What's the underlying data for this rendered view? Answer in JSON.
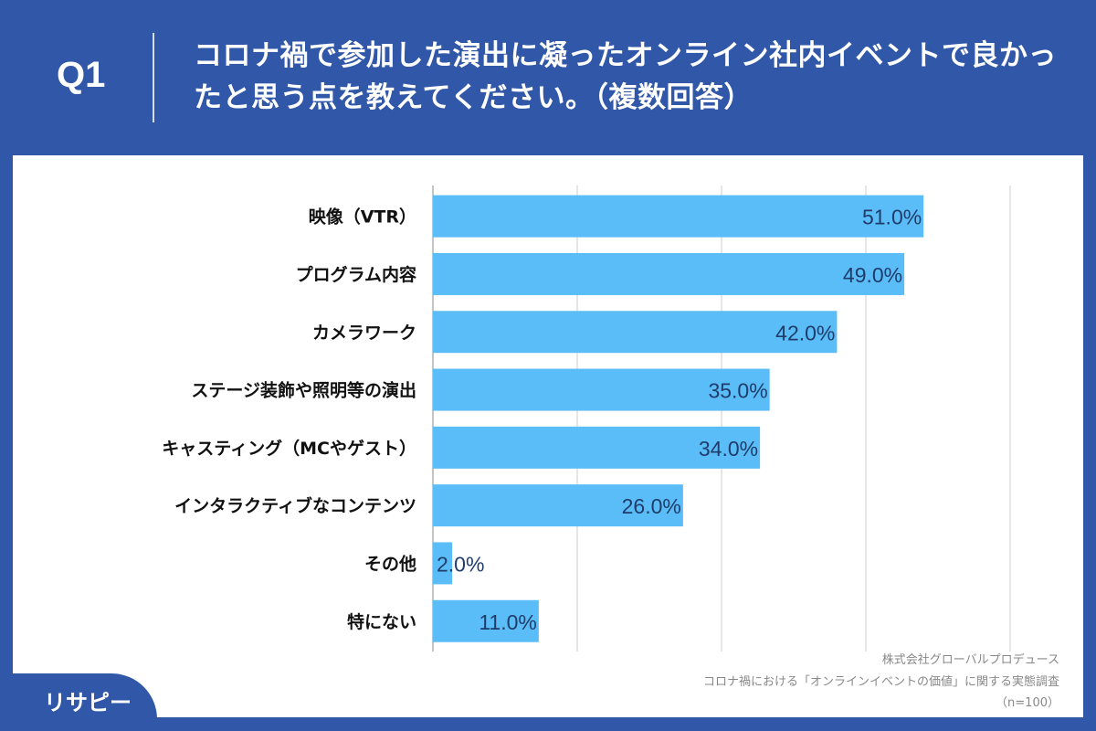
{
  "header": {
    "question": "Q1",
    "title": "コロナ禍で参加した演出に凝ったオンライン社内イベントで良かったと思う点を教えてください。（複数回答）"
  },
  "colors": {
    "background": "#3157a8",
    "bar": "#5bbdf7",
    "value_label": "#1f3c6b"
  },
  "chart_data": {
    "type": "bar",
    "orientation": "horizontal",
    "categories": [
      "映像（VTR）",
      "プログラム内容",
      "カメラワーク",
      "ステージ装飾や照明等の演出",
      "キャスティング（MCやゲスト）",
      "インタラクティブなコンテンツ",
      "その他",
      "特にない"
    ],
    "values": [
      51.0,
      49.0,
      42.0,
      35.0,
      34.0,
      26.0,
      2.0,
      11.0
    ],
    "data_labels": [
      "51.0%",
      "49.0%",
      "42.0%",
      "35.0%",
      "34.0%",
      "26.0%",
      "2.0%",
      "11.0%"
    ],
    "xlim": [
      0,
      60
    ],
    "grid_step": 15,
    "grid": true,
    "unit": "%"
  },
  "source": {
    "line1": "株式会社グローバルプロデュース",
    "line2": "コロナ禍における「オンラインイベントの価値」に関する実態調査",
    "line3": "（n=100）"
  },
  "logo": {
    "text": "リサピー",
    "icon": "pin-icon"
  }
}
